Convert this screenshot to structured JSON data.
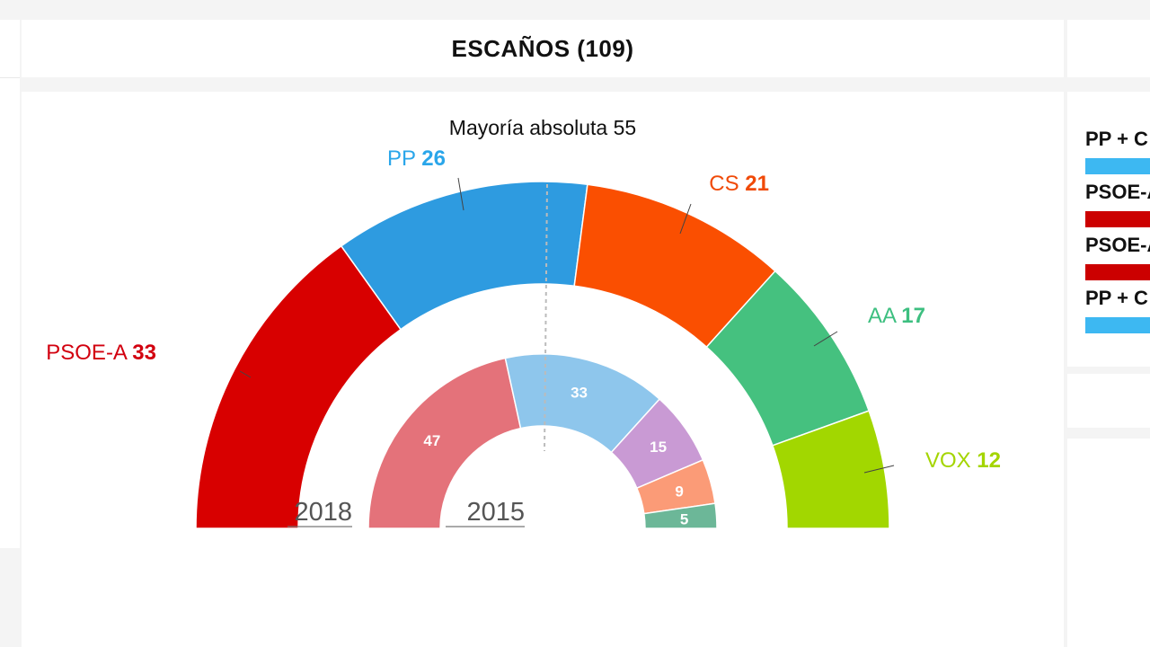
{
  "panel": {
    "title": "ESCAÑOS (109)"
  },
  "majority": {
    "label": "Mayoría absoluta",
    "value": "55"
  },
  "colors": {
    "PSOE-A": "#d80000",
    "PP": "#2e9be0",
    "CS": "#fa4f01",
    "AA": "#45c17f",
    "VOX": "#a2d700",
    "PSOE-A_2015": "#e4727a",
    "PP_2015": "#8ec6ec",
    "Podemos_2015": "#c99ad4",
    "CS_2015": "#fb9b77",
    "IU_2015": "#6cb798",
    "label_PP": "#2aa6ea",
    "label_CS": "#f04a08",
    "label_AA": "#3dbf80",
    "label_VOX": "#a4d500",
    "label_PSOE": "#d2000f"
  },
  "chart_data": [
    {
      "type": "pie",
      "title": "2018",
      "total": 109,
      "categories": [
        "PSOE-A",
        "PP",
        "CS",
        "AA",
        "VOX"
      ],
      "values": [
        33,
        26,
        21,
        17,
        12
      ]
    },
    {
      "type": "pie",
      "title": "2015",
      "total": 109,
      "values": [
        47,
        33,
        15,
        9,
        5
      ]
    }
  ],
  "coalitions": [
    {
      "label": "PP + C",
      "color": "#3db8f2"
    },
    {
      "label": "PSOE-A",
      "color": "#cc0000"
    },
    {
      "label": "PSOE-A",
      "color": "#cc0000"
    },
    {
      "label": "PP + C",
      "color": "#3db8f2"
    }
  ]
}
